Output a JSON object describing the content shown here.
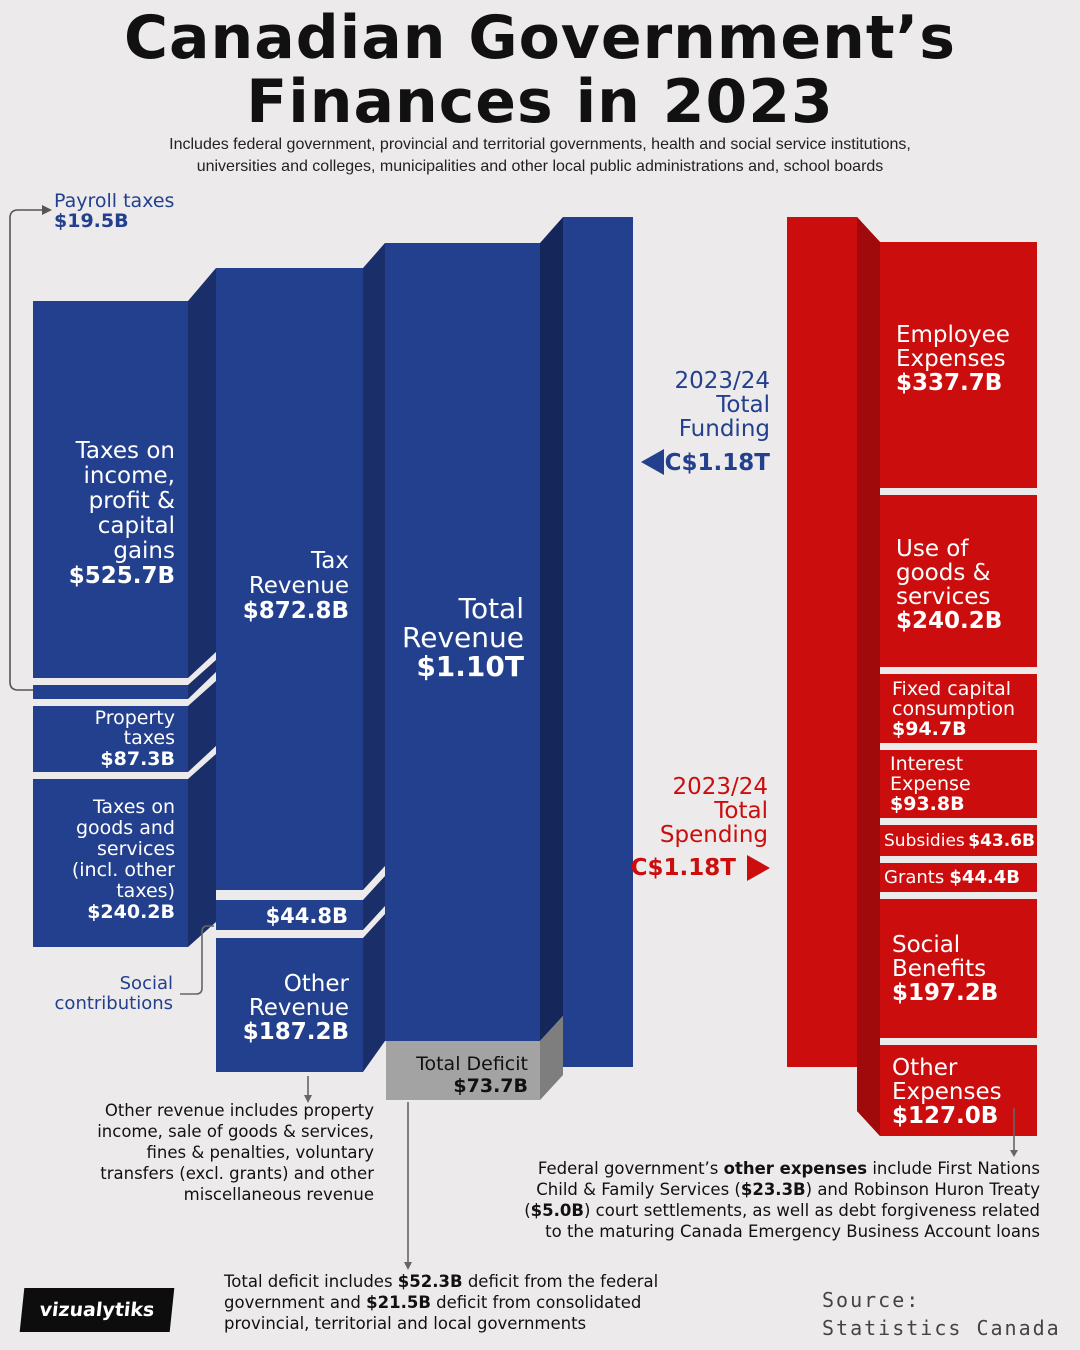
{
  "header": {
    "title_line1": "Canadian Government’s",
    "title_line2": "Finances in 2023",
    "subtitle_line1": "Includes federal government, provincial and territorial governments, health and social service institutions,",
    "subtitle_line2": "universities and colleges, municipalities and other local public administrations and, school boards"
  },
  "colors": {
    "revenue": "#23408e",
    "revenue_side": "#1a2f6a",
    "revenue_side_dark": "#15265a",
    "spending": "#cc0d0d",
    "spending_side": "#a10a0a",
    "deficit": "#a3a3a3",
    "deficit_side": "#7e7e7e",
    "background": "#eceaea"
  },
  "chart_data": {
    "type": "sankey",
    "title": "Canadian Government’s Finances in 2023",
    "units": "CAD",
    "revenue": {
      "tax_components": [
        {
          "label": "Taxes on income, profit & capital gains",
          "value": "$525.7B",
          "value_billion": 525.7
        },
        {
          "label": "Payroll taxes",
          "value": "$19.5B",
          "value_billion": 19.5
        },
        {
          "label": "Property taxes",
          "value": "$87.3B",
          "value_billion": 87.3
        },
        {
          "label": "Taxes on goods and services (incl. other taxes)",
          "value": "$240.2B",
          "value_billion": 240.2
        }
      ],
      "middle": [
        {
          "label": "Tax Revenue",
          "value": "$872.8B",
          "value_billion": 872.8
        },
        {
          "label": "Social contributions",
          "value": "$44.8B",
          "value_billion": 44.8
        },
        {
          "label": "Other Revenue",
          "value": "$187.2B",
          "value_billion": 187.2
        }
      ],
      "total": {
        "label": "Total Revenue",
        "value": "$1.10T",
        "value_billion": 1100
      },
      "deficit": {
        "label": "Total Deficit",
        "value": "$73.7B",
        "value_billion": 73.7
      }
    },
    "funding": {
      "label": "2023/24 Total Funding",
      "value": "C$1.18T",
      "value_billion": 1180
    },
    "spending_total": {
      "label": "2023/24 Total Spending",
      "value": "C$1.18T",
      "value_billion": 1180
    },
    "spending": [
      {
        "label": "Employee Expenses",
        "value": "$337.7B",
        "value_billion": 337.7
      },
      {
        "label": "Use of goods & services",
        "value": "$240.2B",
        "value_billion": 240.2
      },
      {
        "label": "Fixed capital consumption",
        "value": "$94.7B",
        "value_billion": 94.7
      },
      {
        "label": "Interest Expense",
        "value": "$93.8B",
        "value_billion": 93.8
      },
      {
        "label": "Subsidies",
        "value": "$43.6B",
        "value_billion": 43.6
      },
      {
        "label": "Grants",
        "value": "$44.4B",
        "value_billion": 44.4
      },
      {
        "label": "Social Benefits",
        "value": "$197.2B",
        "value_billion": 197.2
      },
      {
        "label": "Other Expenses",
        "value": "$127.0B",
        "value_billion": 127.0
      }
    ]
  },
  "labels": {
    "payroll_title": "Payroll taxes",
    "payroll_value": "$19.5B",
    "income_l1": "Taxes on",
    "income_l2": "income,",
    "income_l3": "profit &",
    "income_l4": "capital",
    "income_l5": "gains",
    "income_value": "$525.7B",
    "property_l1": "Property",
    "property_l2": "taxes",
    "property_value": "$87.3B",
    "goods_l1": "Taxes on",
    "goods_l2": "goods and",
    "goods_l3": "services",
    "goods_l4": "(incl. other",
    "goods_l5": "taxes)",
    "goods_value": "$240.2B",
    "social_value": "$44.8B",
    "social_l1": "Social",
    "social_l2": "contributions",
    "tax_l1": "Tax",
    "tax_l2": "Revenue",
    "tax_value": "$872.8B",
    "other_rev_l1": "Other",
    "other_rev_l2": "Revenue",
    "other_rev_value": "$187.2B",
    "total_rev_l1": "Total",
    "total_rev_l2": "Revenue",
    "total_rev_value": "$1.10T",
    "deficit_title": "Total Deficit",
    "deficit_value": "$73.7B",
    "funding_l1": "2023/24",
    "funding_l2": "Total",
    "funding_l3": "Funding",
    "funding_value": "C$1.18T",
    "spending_l1": "2023/24",
    "spending_l2": "Total",
    "spending_l3": "Spending",
    "spending_value": "C$1.18T",
    "emp_l1": "Employee",
    "emp_l2": "Expenses",
    "emp_value": "$337.7B",
    "use_l1": "Use of",
    "use_l2": "goods &",
    "use_l3": "services",
    "use_value": "$240.2B",
    "fixed_l1": "Fixed capital",
    "fixed_l2": "consumption",
    "fixed_value": "$94.7B",
    "interest_l1": "Interest",
    "interest_l2": "Expense",
    "interest_value": "$93.8B",
    "subsidies_label": "Subsidies",
    "subsidies_value": "$43.6B",
    "grants_label": "Grants",
    "grants_value": "$44.4B",
    "benefits_l1": "Social",
    "benefits_l2": "Benefits",
    "benefits_value": "$197.2B",
    "other_exp_l1": "Other",
    "other_exp_l2": "Expenses",
    "other_exp_value": "$127.0B"
  },
  "notes": {
    "other_revenue_l1": "Other revenue includes property",
    "other_revenue_l2": "income, sale of goods & services,",
    "other_revenue_l3": "fines & penalties, voluntary",
    "other_revenue_l4": "transfers (excl. grants) and other",
    "other_revenue_l5": "miscellaneous revenue",
    "other_exp_l1a": "Federal government’s ",
    "other_exp_l1b": "other expenses",
    "other_exp_l1c": " include First Nations",
    "other_exp_l2a": "Child & Family Services (",
    "other_exp_l2b": "$23.3B",
    "other_exp_l2c": ") and Robinson Huron Treaty",
    "other_exp_l3a": "(",
    "other_exp_l3b": "$5.0B",
    "other_exp_l3c": ") court settlements, as well as debt forgiveness related",
    "other_exp_l4": "to the maturing Canada Emergency Business Account loans",
    "deficit_l1a": "Total deficit includes ",
    "deficit_l1b": "$52.3B",
    "deficit_l1c": " deficit from the federal",
    "deficit_l2a": "government and ",
    "deficit_l2b": "$21.5B",
    "deficit_l2c": " deficit from consolidated",
    "deficit_l3": "provincial, territorial and local governments"
  },
  "footer": {
    "source_l1": "Source:",
    "source_l2": "Statistics Canada",
    "brand": "vizualytiks"
  }
}
